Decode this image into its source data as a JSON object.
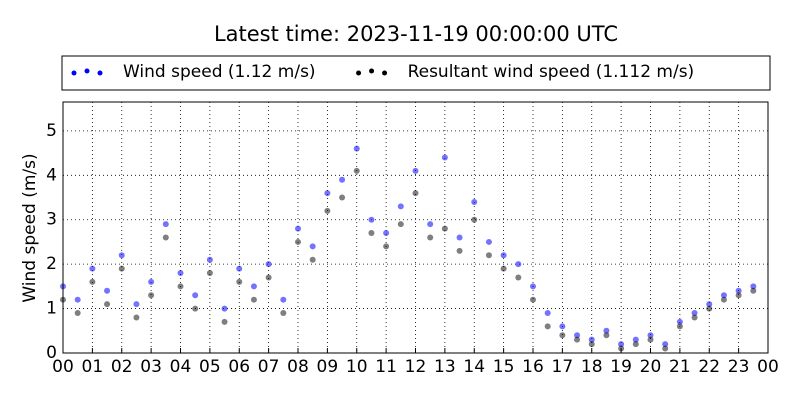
{
  "chart_data": {
    "type": "scatter",
    "title": "Latest time: 2023-11-19 00:00:00 UTC",
    "ylabel": "Wind speed (m/s)",
    "x": [
      0,
      0.5,
      1,
      1.5,
      2,
      2.5,
      3,
      3.5,
      4,
      4.5,
      5,
      5.5,
      6,
      6.5,
      7,
      7.5,
      8,
      8.5,
      9,
      9.5,
      10,
      10.5,
      11,
      11.5,
      12,
      12.5,
      13,
      13.5,
      14,
      14.5,
      15,
      15.5,
      16,
      16.5,
      17,
      17.5,
      18,
      18.5,
      19,
      19.5,
      20,
      20.5,
      21,
      21.5,
      22,
      22.5,
      23,
      23.5
    ],
    "series": [
      {
        "name": "Wind speed (1.12 m/s)",
        "color": "#0000ff",
        "values": [
          1.5,
          1.2,
          1.9,
          1.4,
          2.2,
          1.1,
          1.6,
          2.9,
          1.8,
          1.3,
          2.1,
          1.0,
          1.9,
          1.5,
          2.0,
          1.2,
          2.8,
          2.4,
          3.6,
          3.9,
          4.6,
          3.0,
          2.7,
          3.3,
          4.1,
          2.9,
          4.4,
          2.6,
          3.4,
          2.5,
          2.2,
          2.0,
          1.5,
          0.9,
          0.6,
          0.4,
          0.3,
          0.5,
          0.2,
          0.3,
          0.4,
          0.2,
          0.7,
          0.9,
          1.1,
          1.3,
          1.4,
          1.5
        ]
      },
      {
        "name": "Resultant wind speed (1.112 m/s)",
        "color": "#000000",
        "values": [
          1.2,
          0.9,
          1.6,
          1.1,
          1.9,
          0.8,
          1.3,
          2.6,
          1.5,
          1.0,
          1.8,
          0.7,
          1.6,
          1.2,
          1.7,
          0.9,
          2.5,
          2.1,
          3.2,
          3.5,
          4.1,
          2.7,
          2.4,
          2.9,
          3.6,
          2.6,
          2.8,
          2.3,
          3.0,
          2.2,
          1.9,
          1.7,
          1.2,
          0.6,
          0.4,
          0.3,
          0.2,
          0.4,
          0.1,
          0.2,
          0.3,
          0.1,
          0.6,
          0.8,
          1.0,
          1.2,
          1.3,
          1.4
        ]
      }
    ],
    "xlim": [
      0,
      24
    ],
    "xticks": [
      {
        "value": 0,
        "label": "00"
      },
      {
        "value": 1,
        "label": "01"
      },
      {
        "value": 2,
        "label": "02"
      },
      {
        "value": 3,
        "label": "03"
      },
      {
        "value": 4,
        "label": "04"
      },
      {
        "value": 5,
        "label": "05"
      },
      {
        "value": 6,
        "label": "06"
      },
      {
        "value": 7,
        "label": "07"
      },
      {
        "value": 8,
        "label": "08"
      },
      {
        "value": 9,
        "label": "09"
      },
      {
        "value": 10,
        "label": "10"
      },
      {
        "value": 11,
        "label": "11"
      },
      {
        "value": 12,
        "label": "12"
      },
      {
        "value": 13,
        "label": "13"
      },
      {
        "value": 14,
        "label": "14"
      },
      {
        "value": 15,
        "label": "15"
      },
      {
        "value": 16,
        "label": "16"
      },
      {
        "value": 17,
        "label": "17"
      },
      {
        "value": 18,
        "label": "18"
      },
      {
        "value": 19,
        "label": "19"
      },
      {
        "value": 20,
        "label": "20"
      },
      {
        "value": 21,
        "label": "21"
      },
      {
        "value": 22,
        "label": "22"
      },
      {
        "value": 23,
        "label": "23"
      },
      {
        "value": 24,
        "label": "00"
      }
    ],
    "ylim": [
      0,
      5.65
    ],
    "yticks": [
      0,
      1,
      2,
      3,
      4,
      5
    ],
    "grid": true,
    "legend": "top"
  }
}
